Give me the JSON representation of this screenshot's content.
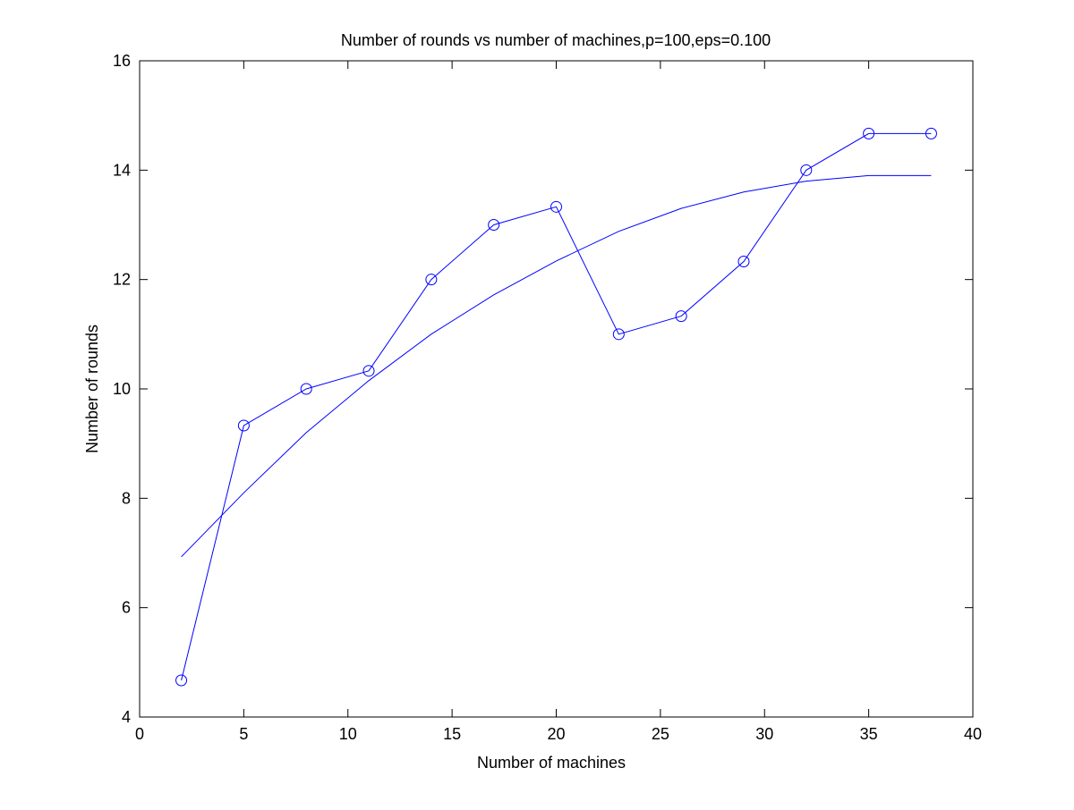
{
  "chart_data": {
    "type": "line",
    "title": "Number of rounds vs number of machines,p=100,eps=0.100",
    "xlabel": "Number of machines",
    "ylabel": "Number of rounds",
    "xlim": [
      0,
      40
    ],
    "ylim": [
      4,
      16
    ],
    "x_ticks": [
      0,
      5,
      10,
      15,
      20,
      25,
      30,
      35,
      40
    ],
    "y_ticks": [
      4,
      6,
      8,
      10,
      12,
      14,
      16
    ],
    "grid": false,
    "legend": "none",
    "series": [
      {
        "marker": "circle",
        "color": "#0000ff",
        "x": [
          2,
          5,
          8,
          11,
          14,
          17,
          20,
          23,
          26,
          29,
          32,
          35,
          38
        ],
        "y": [
          4.67,
          9.33,
          10.0,
          10.33,
          12.0,
          13.0,
          13.33,
          11.0,
          11.33,
          12.33,
          14.0,
          14.67,
          14.67
        ]
      },
      {
        "marker": "none",
        "color": "#0000ff",
        "x": [
          2,
          5,
          8,
          11,
          14,
          17,
          20,
          23,
          26,
          29,
          32,
          35,
          38
        ],
        "y": [
          6.93,
          8.1,
          9.2,
          10.15,
          11.0,
          11.72,
          12.34,
          12.88,
          13.3,
          13.6,
          13.8,
          13.9,
          13.9
        ]
      }
    ]
  }
}
